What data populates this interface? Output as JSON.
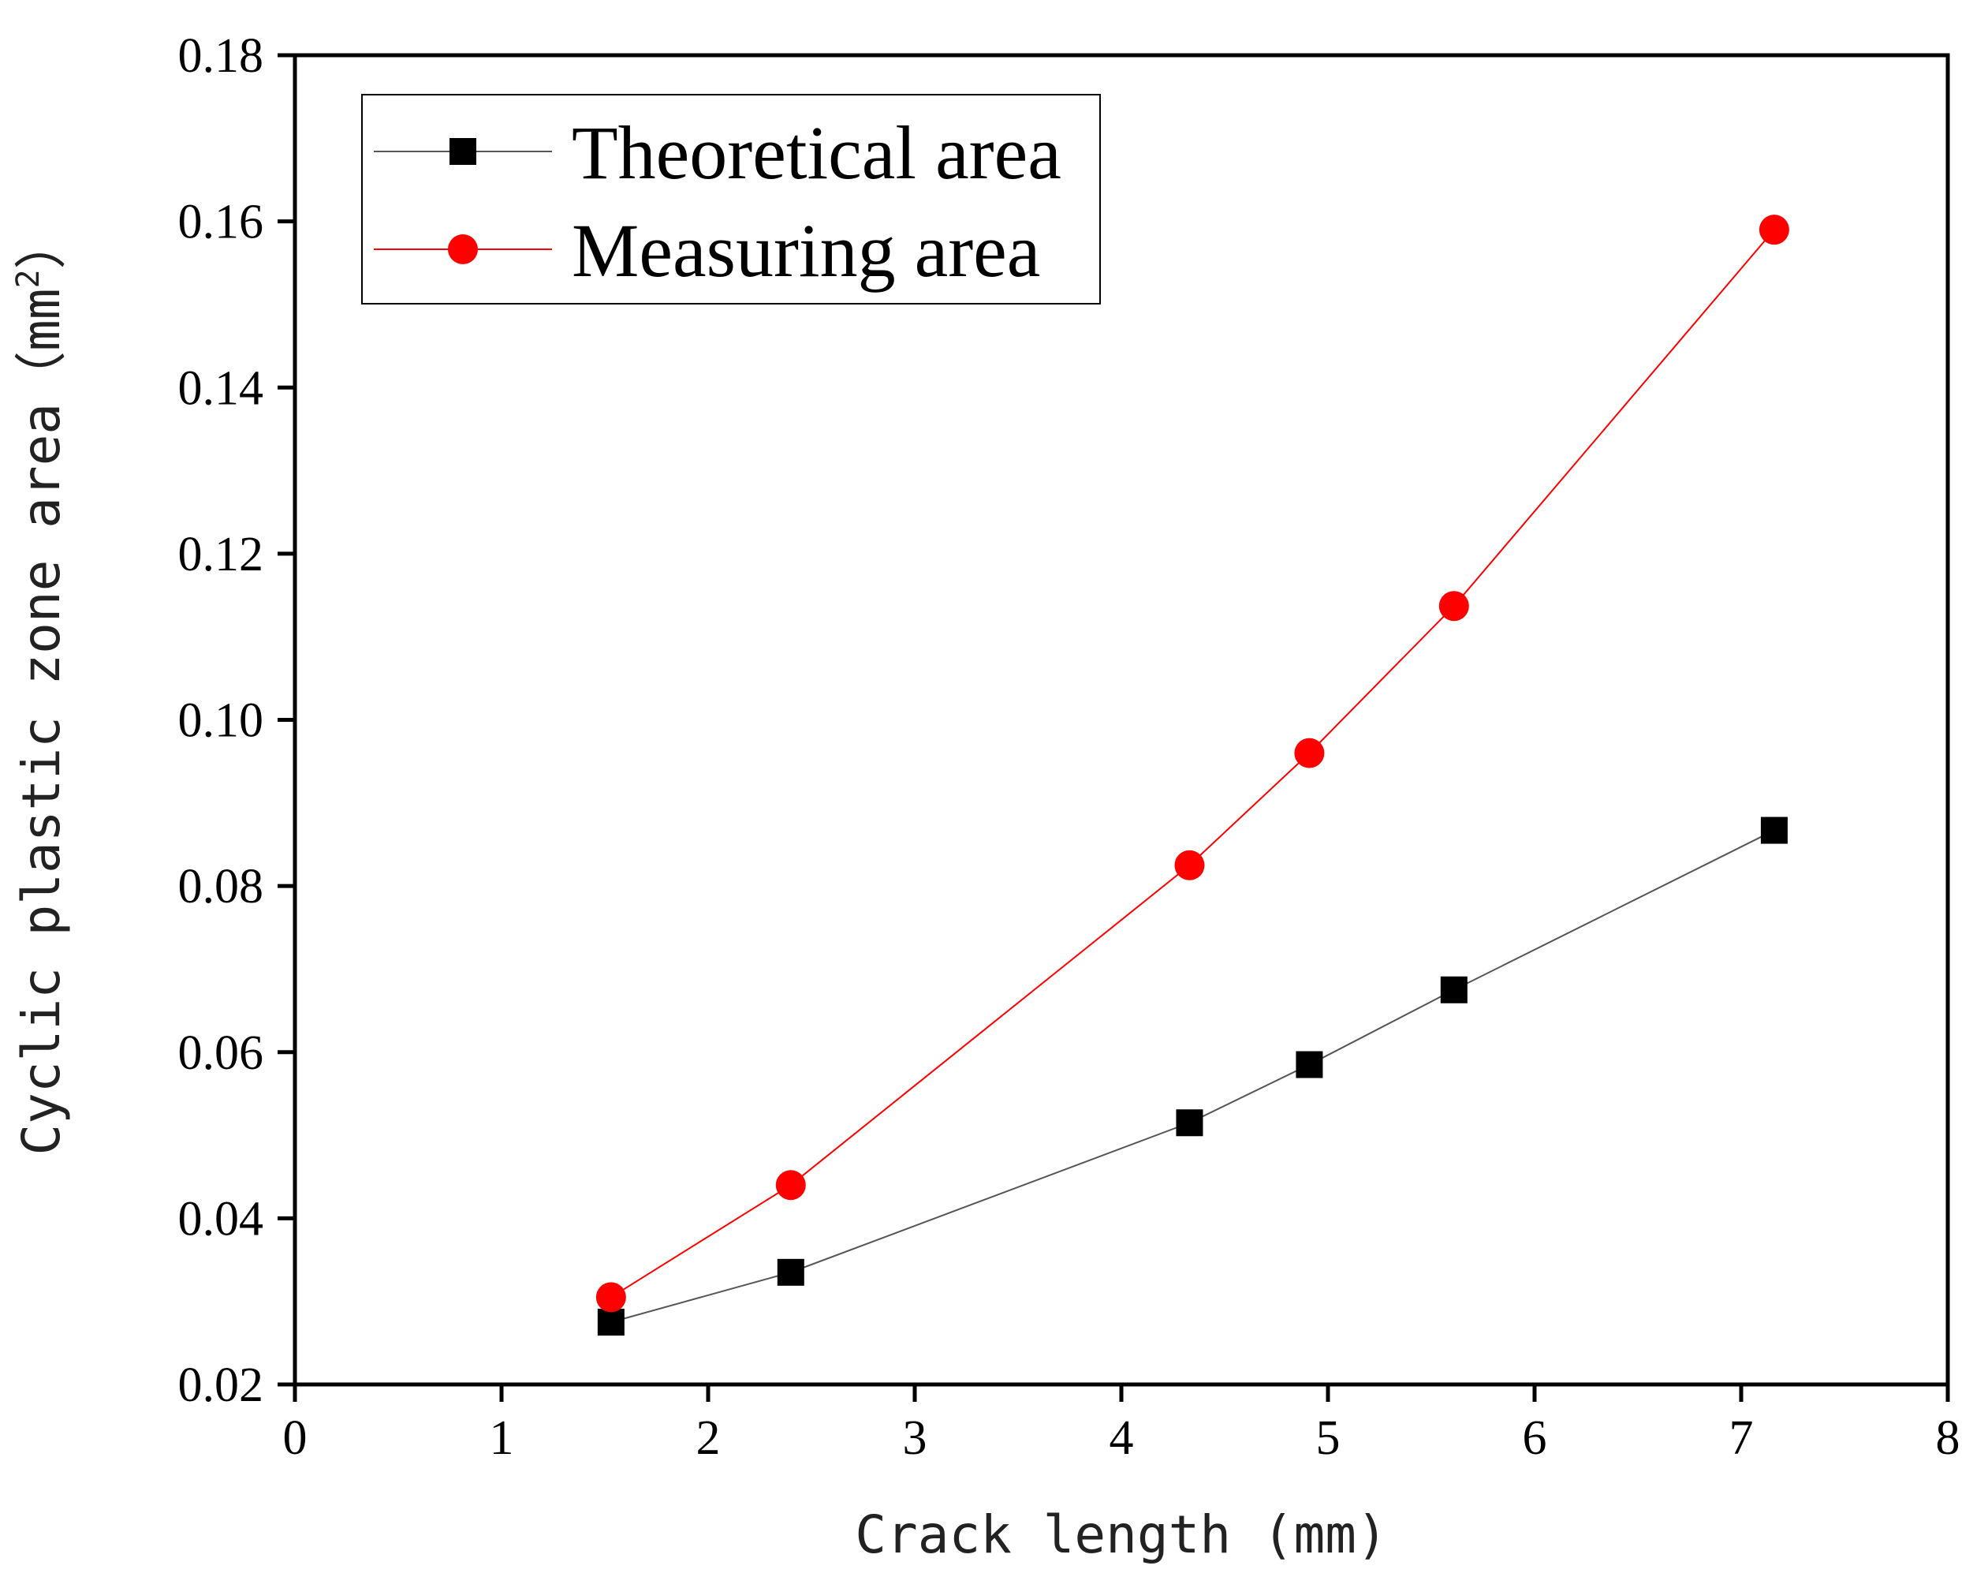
{
  "chart_data": {
    "type": "line",
    "title": "",
    "xlabel": "Crack length (mm)",
    "ylabel_main": "Cyclic plastic zone area",
    "ylabel_unit": "mm",
    "ylabel_unit_sup": "2",
    "xlim": [
      0,
      8
    ],
    "ylim": [
      0.02,
      0.18
    ],
    "x_ticks": [
      0,
      1,
      2,
      3,
      4,
      5,
      6,
      7,
      8
    ],
    "x_tick_labels": [
      "0",
      "1",
      "2",
      "3",
      "4",
      "5",
      "6",
      "7",
      "8"
    ],
    "y_ticks": [
      0.02,
      0.04,
      0.06,
      0.08,
      0.1,
      0.12,
      0.14,
      0.16,
      0.18
    ],
    "y_tick_labels": [
      "0.02",
      "0.04",
      "0.06",
      "0.08",
      "0.10",
      "0.12",
      "0.14",
      "0.16",
      "0.18"
    ],
    "grid": false,
    "legend_position": "top-left",
    "series": [
      {
        "name": "Theoretical area",
        "marker": "square",
        "color": "#000000",
        "line_color": "#555555",
        "x": [
          1.53,
          2.4,
          4.33,
          4.91,
          5.61,
          7.16
        ],
        "y": [
          0.0275,
          0.0335,
          0.0515,
          0.0585,
          0.0675,
          0.0867
        ]
      },
      {
        "name": "Measuring area",
        "marker": "circle",
        "color": "#ff0000",
        "line_color": "#ff0000",
        "x": [
          1.53,
          2.4,
          4.33,
          4.91,
          5.61,
          7.16
        ],
        "y": [
          0.0305,
          0.044,
          0.0825,
          0.096,
          0.1137,
          0.159
        ]
      }
    ]
  }
}
